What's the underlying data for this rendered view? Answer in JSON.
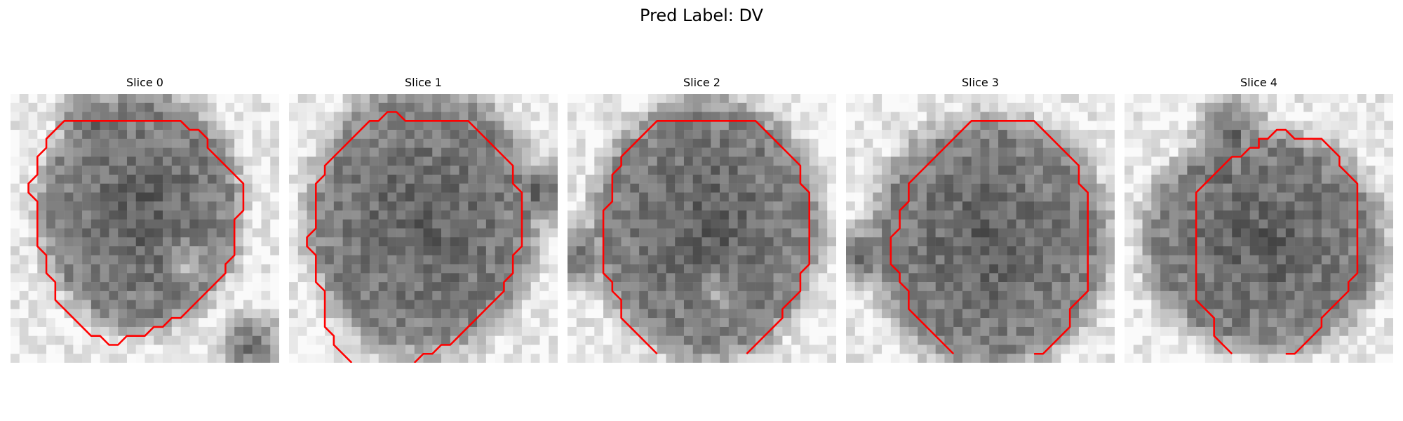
{
  "figure": {
    "suptitle": "Pred Label: DV",
    "colormap": "gray",
    "contour_color": "#ff0000"
  },
  "slices": [
    {
      "title": "Slice 0"
    },
    {
      "title": "Slice 1"
    },
    {
      "title": "Slice 2"
    },
    {
      "title": "Slice 3"
    },
    {
      "title": "Slice 4"
    }
  ]
}
